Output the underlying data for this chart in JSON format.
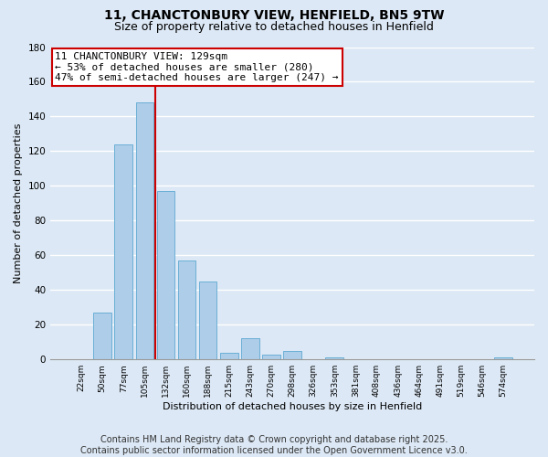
{
  "title_line1": "11, CHANCTONBURY VIEW, HENFIELD, BN5 9TW",
  "title_line2": "Size of property relative to detached houses in Henfield",
  "xlabel": "Distribution of detached houses by size in Henfield",
  "ylabel": "Number of detached properties",
  "bar_labels": [
    "22sqm",
    "50sqm",
    "77sqm",
    "105sqm",
    "132sqm",
    "160sqm",
    "188sqm",
    "215sqm",
    "243sqm",
    "270sqm",
    "298sqm",
    "326sqm",
    "353sqm",
    "381sqm",
    "408sqm",
    "436sqm",
    "464sqm",
    "491sqm",
    "519sqm",
    "546sqm",
    "574sqm"
  ],
  "bar_values": [
    0,
    27,
    124,
    148,
    97,
    57,
    45,
    4,
    12,
    3,
    5,
    0,
    1,
    0,
    0,
    0,
    0,
    0,
    0,
    0,
    1
  ],
  "bar_color": "#aecde8",
  "bar_edge_color": "#6bafd6",
  "vline_x": 3.5,
  "vline_color": "#cc0000",
  "ylim": [
    0,
    180
  ],
  "yticks": [
    0,
    20,
    40,
    60,
    80,
    100,
    120,
    140,
    160,
    180
  ],
  "annotation_text": "11 CHANCTONBURY VIEW: 129sqm\n← 53% of detached houses are smaller (280)\n47% of semi-detached houses are larger (247) →",
  "annotation_box_color": "#ffffff",
  "annotation_box_edge": "#cc0000",
  "footer_line1": "Contains HM Land Registry data © Crown copyright and database right 2025.",
  "footer_line2": "Contains public sector information licensed under the Open Government Licence v3.0.",
  "bg_color": "#dce8f5",
  "plot_bg_color": "#dce8f5",
  "grid_color": "#ffffff",
  "title_fontsize": 10,
  "subtitle_fontsize": 9,
  "footer_fontsize": 7,
  "annotation_fontsize": 8,
  "ylabel_fontsize": 8,
  "xlabel_fontsize": 8
}
